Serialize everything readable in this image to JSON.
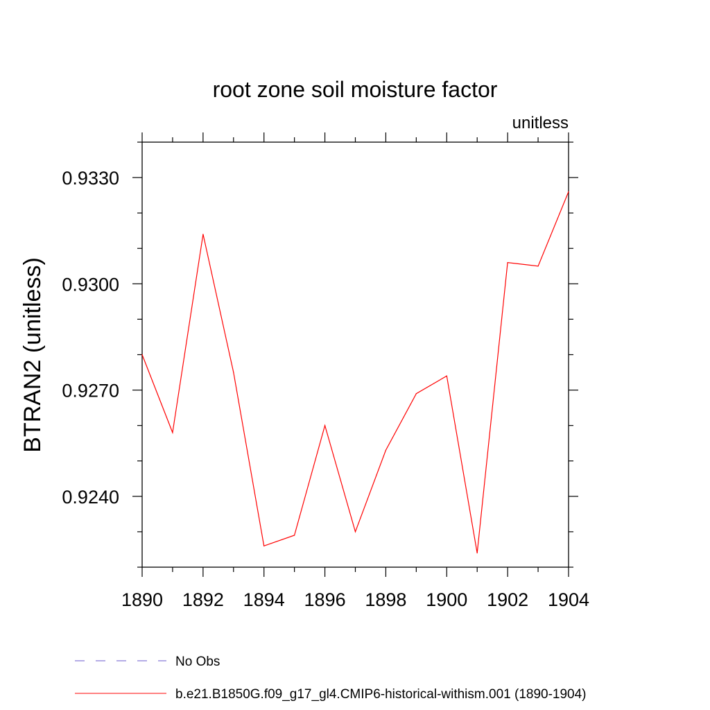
{
  "chart_data": {
    "type": "line",
    "title": "root zone soil moisture factor",
    "units_label": "unitless",
    "ylabel": "BTRAN2  (unitless)",
    "xlabel": "",
    "xlim": [
      1890,
      1904
    ],
    "ylim": [
      0.922,
      0.934
    ],
    "x_ticks": [
      1890,
      1892,
      1894,
      1896,
      1898,
      1900,
      1902,
      1904
    ],
    "x_tick_labels": [
      "1890",
      "1892",
      "1894",
      "1896",
      "1898",
      "1900",
      "1902",
      "1904"
    ],
    "y_ticks": [
      0.924,
      0.927,
      0.93,
      0.933
    ],
    "y_tick_labels": [
      "0.9240",
      "0.9270",
      "0.9300",
      "0.9330"
    ],
    "y_minor_step": 0.001,
    "x_minor_step": 1,
    "grid": false,
    "legend_position": "bottom-left",
    "series": [
      {
        "name": "b.e21.B1850G.f09_g17_gl4.CMIP6-historical-withism.001 (1890-1904)",
        "color": "#ff0000",
        "dash": "solid",
        "x": [
          1890,
          1891,
          1892,
          1893,
          1894,
          1895,
          1896,
          1897,
          1898,
          1899,
          1900,
          1901,
          1902,
          1903,
          1904
        ],
        "values": [
          0.928,
          0.9258,
          0.9314,
          0.9275,
          0.9226,
          0.9229,
          0.926,
          0.923,
          0.9253,
          0.9269,
          0.9274,
          0.9224,
          0.9306,
          0.9305,
          0.9326
        ]
      }
    ],
    "legend": [
      {
        "label": "No Obs",
        "color": "#6a5acd",
        "dash": "dashed"
      },
      {
        "label": "b.e21.B1850G.f09_g17_gl4.CMIP6-historical-withism.001 (1890-1904)",
        "color": "#ff0000",
        "dash": "solid"
      }
    ]
  }
}
